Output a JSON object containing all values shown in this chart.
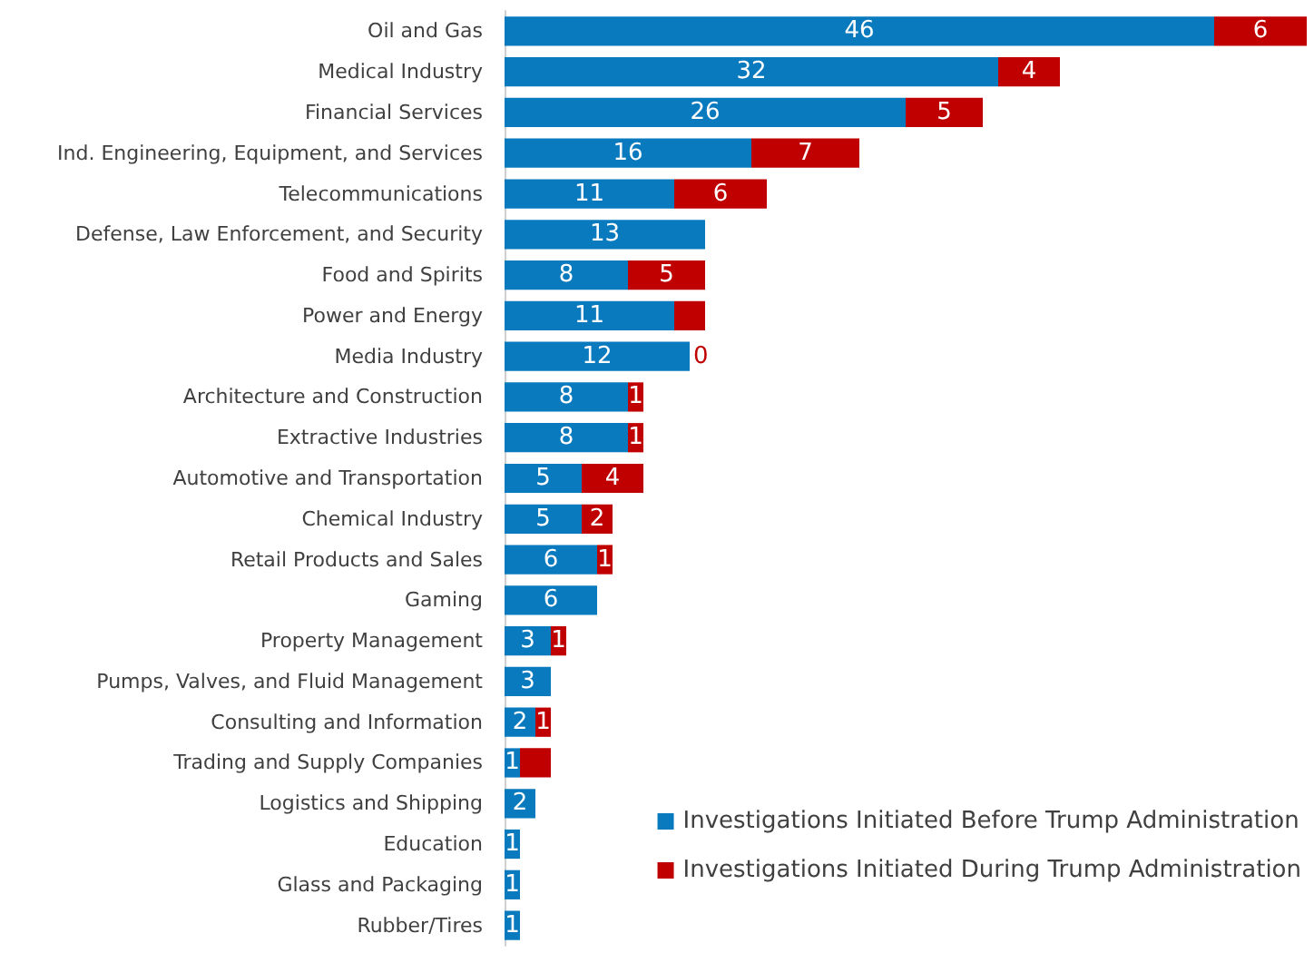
{
  "chart_data": {
    "type": "bar",
    "orientation": "horizontal",
    "stacked": true,
    "legend": "bottom right",
    "grid": false,
    "categories": [
      "Oil and Gas",
      "Medical Industry",
      "Financial Services",
      "Ind. Engineering, Equipment, and Services",
      "Telecommunications",
      "Defense, Law Enforcement, and Security",
      "Food and Spirits",
      "Power and Energy",
      "Media Industry",
      "Architecture and Construction",
      "Extractive Industries",
      "Automotive and Transportation",
      "Chemical Industry",
      "Retail Products and Sales",
      "Gaming",
      "Property Management",
      "Pumps, Valves, and Fluid Management",
      "Consulting and Information",
      "Trading and Supply Companies",
      "Logistics and Shipping",
      "Education",
      "Glass and Packaging",
      "Rubber/Tires"
    ],
    "series": [
      {
        "name": "Investigations Initiated Before Trump Administration",
        "color": "#0a7abf",
        "values": [
          46,
          32,
          26,
          16,
          11,
          13,
          8,
          11,
          12,
          8,
          8,
          5,
          5,
          6,
          6,
          3,
          3,
          2,
          1,
          2,
          1,
          1,
          1
        ],
        "value_labels": [
          "46",
          "32",
          "26",
          "16",
          "11",
          "13",
          "8",
          "11",
          "12",
          "8",
          "8",
          "5",
          "5",
          "6",
          "6",
          "3",
          "3",
          "2",
          "1",
          "2",
          "1",
          "1",
          "1"
        ]
      },
      {
        "name": "Investigations Initiated During Trump Administration",
        "color": "#c00000",
        "values": [
          6,
          4,
          5,
          7,
          6,
          null,
          5,
          2,
          0,
          1,
          1,
          4,
          2,
          1,
          null,
          1,
          null,
          1,
          2,
          null,
          null,
          null,
          null
        ],
        "value_labels": [
          "6",
          "4",
          "5",
          "7",
          "6",
          null,
          "5",
          null,
          "0",
          "1",
          "1",
          "4",
          "2",
          "1",
          null,
          "1",
          null,
          "1",
          null,
          null,
          null,
          null,
          null
        ]
      }
    ]
  }
}
